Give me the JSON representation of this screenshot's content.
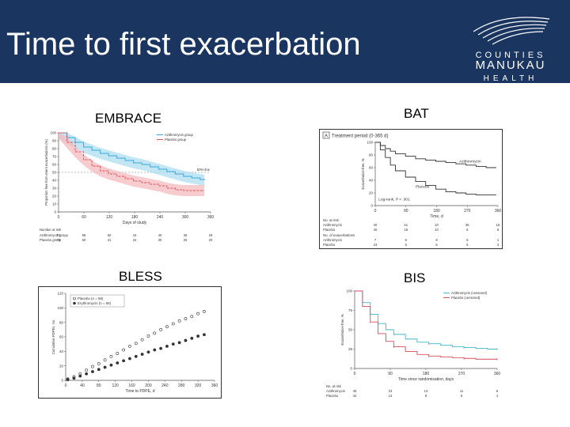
{
  "page": {
    "title": "Time to first exacerbation",
    "logo": {
      "line1": "COUNTIES",
      "line2": "MANUKAU",
      "line3": "HEALTH"
    },
    "colors": {
      "header_bg": "#1a3560",
      "text_light": "#ffffff"
    }
  },
  "chart_data": [
    {
      "id": "embrace",
      "study_label": "EMBRACE",
      "type": "line",
      "title": "",
      "xlabel": "Days of study",
      "ylabel": "Proportion free from event exacerbations (%)",
      "xlim": [
        0,
        365
      ],
      "ylim": [
        0,
        100
      ],
      "xticks": [
        "0",
        "60",
        "120",
        "180",
        "240",
        "300",
        "360"
      ],
      "yticks": [
        "0",
        "10",
        "20",
        "30",
        "40",
        "50",
        "60",
        "70",
        "80",
        "90",
        "100"
      ],
      "legend": [
        "Azithromycin group",
        "Placebo group"
      ],
      "reference_label": "50% line",
      "reference_y": 50,
      "series": [
        {
          "name": "Azithromycin group",
          "color": "#3aa8d8",
          "band": "#a8dcef",
          "x": [
            0,
            20,
            40,
            60,
            80,
            100,
            120,
            140,
            160,
            180,
            200,
            220,
            240,
            260,
            280,
            300,
            320,
            340,
            350
          ],
          "y": [
            100,
            94,
            88,
            82,
            78,
            74,
            71,
            68,
            65,
            62,
            60,
            57,
            54,
            51,
            48,
            45,
            43,
            41,
            40
          ]
        },
        {
          "name": "Placebo group",
          "color": "#e0505a",
          "band": "#f4b6ba",
          "x": [
            0,
            20,
            40,
            60,
            80,
            100,
            120,
            140,
            160,
            180,
            200,
            220,
            240,
            260,
            280,
            300,
            320,
            340,
            350
          ],
          "y": [
            100,
            88,
            76,
            66,
            58,
            52,
            48,
            45,
            42,
            39,
            37,
            35,
            33,
            30,
            28,
            27,
            27,
            27,
            27
          ]
        }
      ],
      "risk_table": {
        "title": "Number at risk",
        "rows": [
          {
            "label": "Azithromycin group",
            "values": [
              "71",
              "58",
              "50",
              "44",
              "40",
              "35",
              "29"
            ]
          },
          {
            "label": "Placebo group",
            "values": [
              "70",
              "50",
              "41",
              "34",
              "30",
              "25",
              "20"
            ]
          }
        ]
      }
    },
    {
      "id": "bat",
      "study_label": "BAT",
      "type": "line",
      "title": "Treatment period (0-365 d)",
      "panel_letter": "A",
      "xlabel": "Time, d",
      "ylabel": "Exacerbation-free, %",
      "xlim": [
        0,
        365
      ],
      "ylim": [
        0,
        100
      ],
      "xticks": [
        "0",
        "90",
        "180",
        "270",
        "360"
      ],
      "yticks": [
        "0",
        "20",
        "40",
        "60",
        "80",
        "100"
      ],
      "annotation": "Log-rank, P < .001",
      "series": [
        {
          "name": "Azithromycin",
          "color": "#333333",
          "x": [
            0,
            15,
            30,
            45,
            60,
            90,
            120,
            150,
            180,
            210,
            240,
            270,
            300,
            330,
            360
          ],
          "y": [
            100,
            95,
            90,
            86,
            82,
            78,
            74,
            72,
            70,
            68,
            66,
            64,
            62,
            60,
            60
          ]
        },
        {
          "name": "Placebo",
          "color": "#333333",
          "x": [
            0,
            15,
            30,
            45,
            60,
            90,
            120,
            150,
            180,
            210,
            240,
            270,
            300,
            330,
            360
          ],
          "y": [
            100,
            88,
            76,
            64,
            55,
            45,
            38,
            32,
            26,
            22,
            20,
            18,
            17,
            17,
            17
          ]
        }
      ],
      "risk_table": {
        "title": "No. at risk",
        "rows": [
          {
            "label": "Azithromycin",
            "values": [
              "40",
              "41",
              "10",
              "36",
              "15"
            ]
          },
          {
            "label": "Placebo",
            "values": [
              "40",
              "18",
              "10",
              "5",
              "6"
            ]
          }
        ],
        "title2": "No. of exacerbations",
        "rows2": [
          {
            "label": "Azithromycin",
            "values": [
              "7",
              "6",
              "8",
              "5",
              "1"
            ]
          },
          {
            "label": "Placebo",
            "values": [
              "23",
              "5",
              "5",
              "5",
              "3"
            ]
          }
        ]
      }
    },
    {
      "id": "bless",
      "study_label": "BLESS",
      "type": "scatter",
      "title": "",
      "xlabel": "Time to PDPE, d",
      "ylabel": "Cumulative PDPEs, No.",
      "xlim": [
        0,
        360
      ],
      "ylim": [
        0,
        120
      ],
      "xticks": [
        "0",
        "40",
        "80",
        "120",
        "160",
        "200",
        "240",
        "280",
        "320",
        "360"
      ],
      "yticks": [
        "0",
        "20",
        "40",
        "60",
        "80",
        "100",
        "120"
      ],
      "legend": [
        "Placebo (n = 58)",
        "Erythromycin (n = 59)"
      ],
      "series": [
        {
          "name": "Placebo (n = 58)",
          "marker": "open-circle",
          "color": "#333333",
          "x": [
            5,
            20,
            35,
            50,
            65,
            80,
            95,
            110,
            125,
            140,
            155,
            170,
            185,
            200,
            215,
            230,
            245,
            260,
            275,
            290,
            305,
            320,
            335
          ],
          "y": [
            2,
            5,
            9,
            14,
            19,
            23,
            28,
            33,
            37,
            42,
            47,
            51,
            56,
            61,
            65,
            70,
            74,
            78,
            82,
            85,
            88,
            92,
            95
          ]
        },
        {
          "name": "Erythromycin (n = 59)",
          "marker": "filled-circle",
          "color": "#333333",
          "x": [
            5,
            20,
            35,
            50,
            65,
            80,
            95,
            110,
            125,
            140,
            155,
            170,
            185,
            200,
            215,
            230,
            245,
            260,
            275,
            290,
            305,
            320,
            335
          ],
          "y": [
            1,
            3,
            6,
            9,
            12,
            15,
            18,
            21,
            24,
            27,
            30,
            33,
            36,
            39,
            42,
            44,
            47,
            50,
            52,
            55,
            58,
            61,
            63
          ]
        }
      ]
    },
    {
      "id": "bis",
      "study_label": "BIS",
      "type": "line",
      "title": "",
      "xlabel": "Time since randomisation, days",
      "ylabel": "Exacerbation-free, %",
      "xlim": [
        0,
        365
      ],
      "ylim": [
        0,
        100
      ],
      "xticks": [
        "0",
        "90",
        "180",
        "270",
        "360"
      ],
      "yticks": [
        "0",
        "25",
        "50",
        "75",
        "100"
      ],
      "legend": [
        "Azithromycin (censored)",
        "Placebo (censored)"
      ],
      "series": [
        {
          "name": "Azithromycin",
          "color": "#40b8c8",
          "x": [
            0,
            20,
            40,
            60,
            80,
            100,
            130,
            160,
            190,
            220,
            250,
            280,
            310,
            340,
            365
          ],
          "y": [
            100,
            85,
            70,
            58,
            50,
            44,
            38,
            34,
            32,
            30,
            28,
            27,
            26,
            25,
            25
          ]
        },
        {
          "name": "Placebo",
          "color": "#d84a58",
          "x": [
            0,
            20,
            40,
            60,
            80,
            100,
            130,
            160,
            190,
            220,
            250,
            280,
            310,
            340,
            365
          ],
          "y": [
            100,
            80,
            60,
            45,
            35,
            28,
            22,
            18,
            16,
            15,
            14,
            13,
            12,
            12,
            12
          ]
        }
      ],
      "risk_table": {
        "title": "No. at risk",
        "rows": [
          {
            "label": "Azithromycin",
            "values": [
              "45",
              "23",
              "13",
              "11",
              "6"
            ]
          },
          {
            "label": "Placebo",
            "values": [
              "44",
              "14",
              "6",
              "5",
              "4"
            ]
          }
        ]
      }
    }
  ]
}
